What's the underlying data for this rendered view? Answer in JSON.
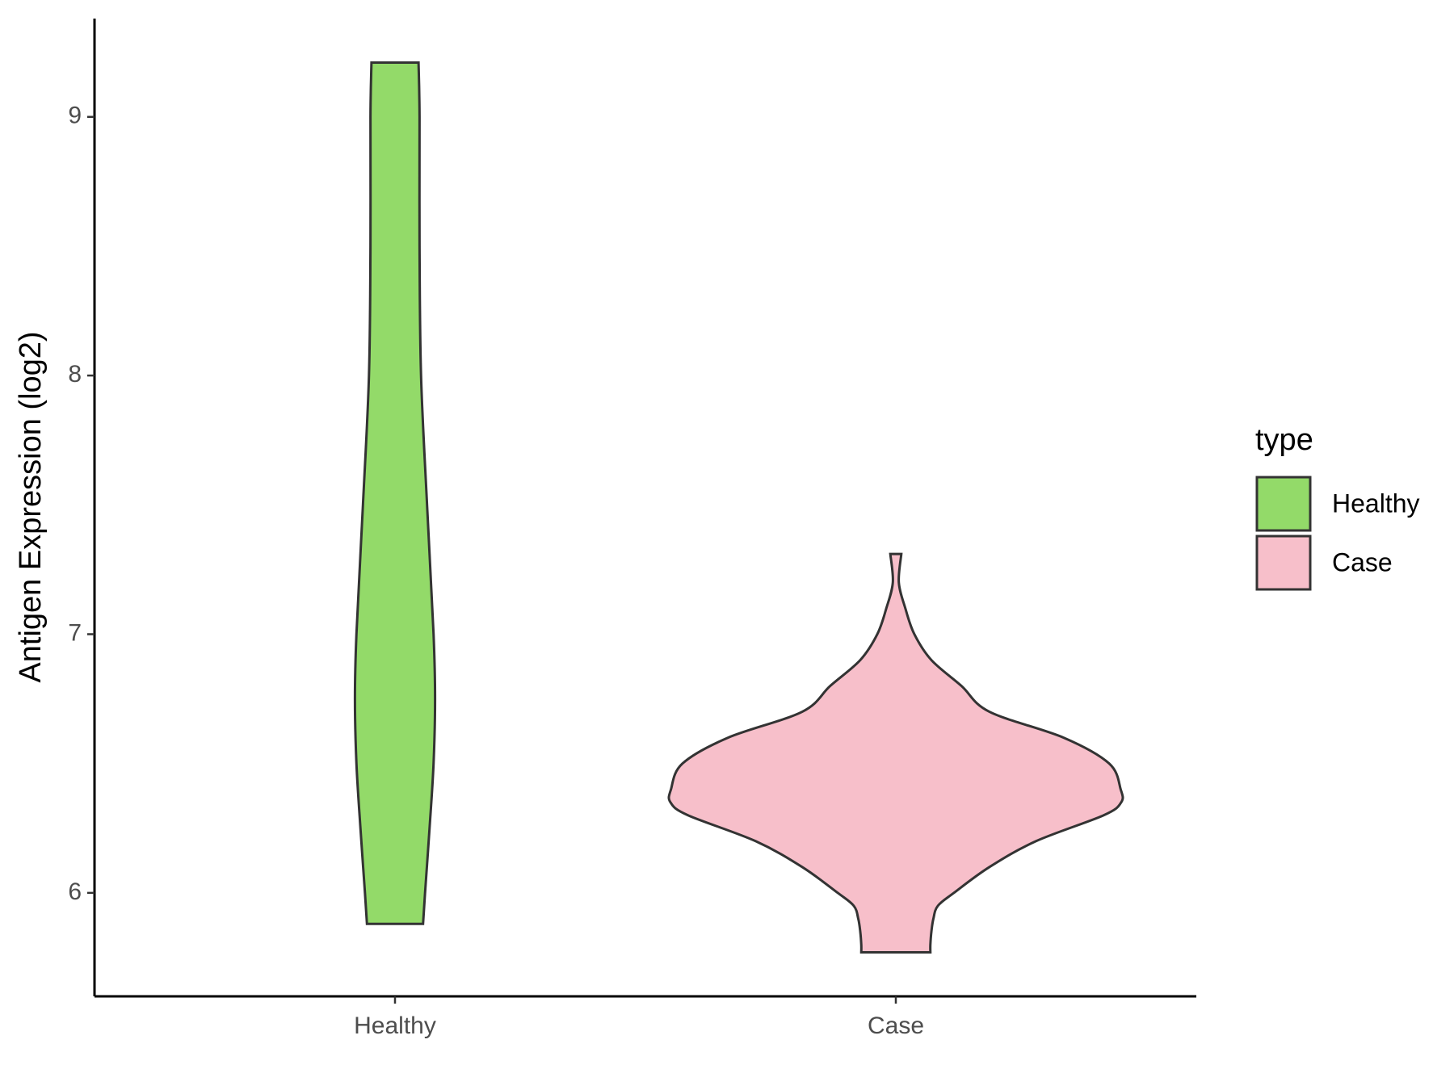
{
  "chart_data": {
    "type": "violin",
    "y_label": "Antigen Expression (log2)",
    "categories": [
      "Healthy",
      "Case"
    ],
    "legend_title": "type",
    "series": [
      {
        "name": "Healthy",
        "color": "#93da69",
        "y": [
          9.21,
          9.0,
          8.5,
          8.0,
          7.5,
          7.0,
          6.75,
          6.5,
          6.25,
          6.0,
          5.88
        ],
        "half_widths": [
          0.047,
          0.049,
          0.049,
          0.052,
          0.064,
          0.077,
          0.08,
          0.077,
          0.069,
          0.06,
          0.056
        ]
      },
      {
        "name": "Case",
        "color": "#f7bfca",
        "y": [
          7.31,
          7.2,
          7.1,
          7.0,
          6.9,
          6.8,
          6.7,
          6.6,
          6.5,
          6.4,
          6.35,
          6.3,
          6.2,
          6.1,
          6.0,
          5.95,
          5.9,
          5.85,
          5.8,
          5.77
        ],
        "half_widths": [
          0.011,
          0.006,
          0.019,
          0.037,
          0.071,
          0.131,
          0.187,
          0.335,
          0.426,
          0.449,
          0.45,
          0.415,
          0.28,
          0.187,
          0.116,
          0.084,
          0.075,
          0.071,
          0.069,
          0.069
        ]
      }
    ],
    "ylim": [
      5.6,
      9.38
    ],
    "yticks": [
      6,
      7,
      8,
      9
    ]
  }
}
